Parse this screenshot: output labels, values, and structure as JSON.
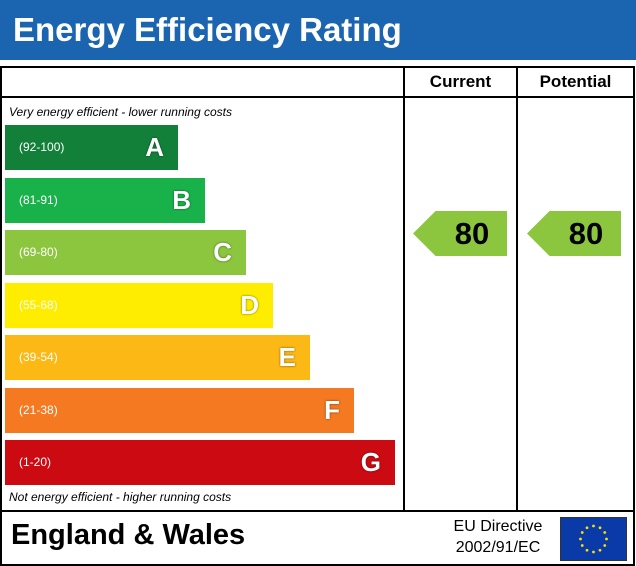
{
  "header": {
    "title": "Energy Efficiency Rating"
  },
  "columns": {
    "current": "Current",
    "potential": "Potential"
  },
  "captions": {
    "top": "Very energy efficient - lower running costs",
    "bottom": "Not energy efficient - higher running costs"
  },
  "footer": {
    "region": "England & Wales",
    "directive_line1": "EU Directive",
    "directive_line2": "2002/91/EC",
    "flag_icon": "eu-flag-icon"
  },
  "chart_data": {
    "type": "bar",
    "title": "Energy Efficiency Rating",
    "categories": [
      "A",
      "B",
      "C",
      "D",
      "E",
      "F",
      "G"
    ],
    "bands": [
      {
        "letter": "A",
        "range": "(92-100)",
        "min": 92,
        "max": 100,
        "color": "#13803a"
      },
      {
        "letter": "B",
        "range": "(81-91)",
        "min": 81,
        "max": 91,
        "color": "#19b24a"
      },
      {
        "letter": "C",
        "range": "(69-80)",
        "min": 69,
        "max": 80,
        "color": "#8cc63f"
      },
      {
        "letter": "D",
        "range": "(55-68)",
        "min": 55,
        "max": 68,
        "color": "#ffed00"
      },
      {
        "letter": "E",
        "range": "(39-54)",
        "min": 39,
        "max": 54,
        "color": "#fcb814"
      },
      {
        "letter": "F",
        "range": "(21-38)",
        "min": 21,
        "max": 38,
        "color": "#f47920"
      },
      {
        "letter": "G",
        "range": "(1-20)",
        "min": 1,
        "max": 20,
        "color": "#cc0a12"
      }
    ],
    "ratings": [
      {
        "name": "Current",
        "value": "80",
        "band": "C",
        "color": "#8cc63f"
      },
      {
        "name": "Potential",
        "value": "80",
        "band": "C",
        "color": "#8cc63f"
      }
    ]
  }
}
